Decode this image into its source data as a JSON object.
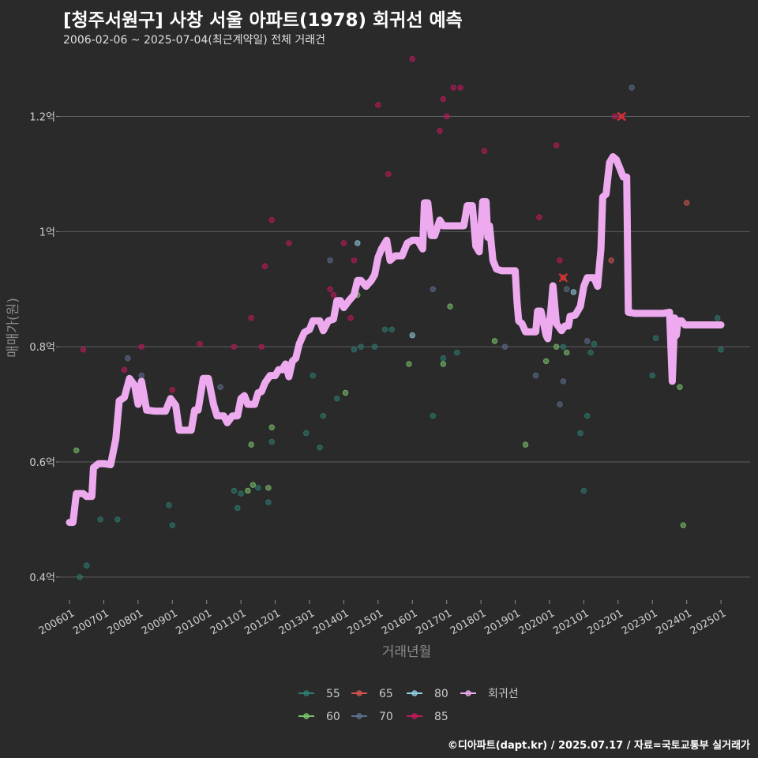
{
  "title": "[청주서원구] 사창 서울 아파트(1978) 회귀선 예측",
  "subtitle": "2006-02-06 ~ 2025-07-04(최근계약일) 전체 거래건",
  "credit": "©디아파트(dapt.kr) / 2025.07.17 / 자료=국토교통부 실거래가",
  "chart_data": {
    "type": "scatter",
    "xlabel": "거래년월",
    "ylabel": "매매가(원)",
    "xlim": [
      2005.7,
      2025.85
    ],
    "ylim": [
      0.36,
      1.32
    ],
    "y_unit": "억",
    "y_ticks": [
      {
        "value": 0.4,
        "label": "0.4억"
      },
      {
        "value": 0.6,
        "label": "0.6억"
      },
      {
        "value": 0.8,
        "label": "0.8억"
      },
      {
        "value": 1.0,
        "label": "1억"
      },
      {
        "value": 1.2,
        "label": "1.2억"
      }
    ],
    "x_ticks": [
      {
        "value": 2006.0,
        "label": "200601"
      },
      {
        "value": 2007.0,
        "label": "200701"
      },
      {
        "value": 2008.0,
        "label": "200801"
      },
      {
        "value": 2009.0,
        "label": "200901"
      },
      {
        "value": 2010.0,
        "label": "201001"
      },
      {
        "value": 2011.0,
        "label": "201101"
      },
      {
        "value": 2012.0,
        "label": "201201"
      },
      {
        "value": 2013.0,
        "label": "201301"
      },
      {
        "value": 2014.0,
        "label": "201401"
      },
      {
        "value": 2015.0,
        "label": "201501"
      },
      {
        "value": 2016.0,
        "label": "201601"
      },
      {
        "value": 2017.0,
        "label": "201701"
      },
      {
        "value": 2018.0,
        "label": "201801"
      },
      {
        "value": 2019.0,
        "label": "201901"
      },
      {
        "value": 2020.0,
        "label": "202001"
      },
      {
        "value": 2021.0,
        "label": "202101"
      },
      {
        "value": 2022.0,
        "label": "202201"
      },
      {
        "value": 2023.0,
        "label": "202301"
      },
      {
        "value": 2024.0,
        "label": "202401"
      },
      {
        "value": 2025.0,
        "label": "202501"
      }
    ],
    "colors": {
      "55": "#2e7d72",
      "60": "#7cc46a",
      "65": "#d2554f",
      "70": "#5e6f8f",
      "80": "#8fcfe0",
      "85": "#c2185b",
      "regression": "#eeaaee",
      "highlight": "#d32f2f"
    },
    "legend": [
      {
        "key": "55",
        "label": "55"
      },
      {
        "key": "65",
        "label": "65"
      },
      {
        "key": "80",
        "label": "80"
      },
      {
        "key": "regression",
        "label": "회귀선"
      },
      {
        "key": "60",
        "label": "60"
      },
      {
        "key": "70",
        "label": "70"
      },
      {
        "key": "85",
        "label": "85"
      }
    ],
    "series": [
      {
        "name": "55",
        "points": [
          [
            2006.3,
            0.4
          ],
          [
            2006.5,
            0.42
          ],
          [
            2006.9,
            0.5
          ],
          [
            2007.4,
            0.5
          ],
          [
            2008.9,
            0.525
          ],
          [
            2009.0,
            0.49
          ],
          [
            2010.8,
            0.55
          ],
          [
            2010.9,
            0.52
          ],
          [
            2011.0,
            0.545
          ],
          [
            2011.5,
            0.555
          ],
          [
            2011.8,
            0.53
          ],
          [
            2011.9,
            0.635
          ],
          [
            2012.9,
            0.65
          ],
          [
            2013.1,
            0.75
          ],
          [
            2013.3,
            0.625
          ],
          [
            2013.4,
            0.68
          ],
          [
            2013.8,
            0.71
          ],
          [
            2014.3,
            0.795
          ],
          [
            2014.5,
            0.8
          ],
          [
            2014.9,
            0.8
          ],
          [
            2015.2,
            0.83
          ],
          [
            2015.4,
            0.83
          ],
          [
            2016.6,
            0.68
          ],
          [
            2016.9,
            0.78
          ],
          [
            2017.3,
            0.79
          ],
          [
            2020.4,
            0.8
          ],
          [
            2020.9,
            0.65
          ],
          [
            2021.0,
            0.55
          ],
          [
            2021.1,
            0.68
          ],
          [
            2021.2,
            0.79
          ],
          [
            2021.3,
            0.805
          ],
          [
            2023.0,
            0.75
          ],
          [
            2023.1,
            0.815
          ],
          [
            2024.9,
            0.85
          ],
          [
            2025.0,
            0.795
          ]
        ]
      },
      {
        "name": "60",
        "points": [
          [
            2006.2,
            0.62
          ],
          [
            2011.2,
            0.55
          ],
          [
            2011.3,
            0.63
          ],
          [
            2011.35,
            0.56
          ],
          [
            2011.8,
            0.555
          ],
          [
            2011.9,
            0.66
          ],
          [
            2014.05,
            0.72
          ],
          [
            2014.4,
            0.89
          ],
          [
            2015.9,
            0.77
          ],
          [
            2016.9,
            0.77
          ],
          [
            2017.1,
            0.87
          ],
          [
            2018.4,
            0.81
          ],
          [
            2019.3,
            0.63
          ],
          [
            2019.9,
            0.775
          ],
          [
            2020.2,
            0.8
          ],
          [
            2020.5,
            0.79
          ],
          [
            2022.3,
            0.92
          ],
          [
            2023.8,
            0.73
          ],
          [
            2023.9,
            0.49
          ]
        ]
      },
      {
        "name": "65",
        "points": [
          [
            2020.4,
            0.92
          ],
          [
            2021.8,
            0.95
          ],
          [
            2024.0,
            1.05
          ]
        ]
      },
      {
        "name": "70",
        "points": [
          [
            2007.7,
            0.78
          ],
          [
            2008.1,
            0.75
          ],
          [
            2010.0,
            0.74
          ],
          [
            2010.4,
            0.73
          ],
          [
            2013.6,
            0.95
          ],
          [
            2016.6,
            0.9
          ],
          [
            2018.7,
            0.8
          ],
          [
            2019.6,
            0.75
          ],
          [
            2020.3,
            0.7
          ],
          [
            2020.4,
            0.74
          ],
          [
            2020.5,
            0.9
          ],
          [
            2021.1,
            0.81
          ],
          [
            2022.4,
            1.25
          ]
        ]
      },
      {
        "name": "80",
        "points": [
          [
            2014.4,
            0.98
          ],
          [
            2016.0,
            0.82
          ],
          [
            2020.7,
            0.895
          ]
        ]
      },
      {
        "name": "85",
        "points": [
          [
            2006.4,
            0.795
          ],
          [
            2007.6,
            0.76
          ],
          [
            2008.1,
            0.8
          ],
          [
            2009.0,
            0.725
          ],
          [
            2009.8,
            0.805
          ],
          [
            2010.8,
            0.8
          ],
          [
            2011.3,
            0.85
          ],
          [
            2011.6,
            0.8
          ],
          [
            2011.7,
            0.94
          ],
          [
            2011.9,
            1.02
          ],
          [
            2012.4,
            0.98
          ],
          [
            2013.0,
            0.83
          ],
          [
            2013.4,
            0.84
          ],
          [
            2013.6,
            0.9
          ],
          [
            2013.7,
            0.89
          ],
          [
            2014.0,
            0.98
          ],
          [
            2014.2,
            0.85
          ],
          [
            2014.3,
            0.95
          ],
          [
            2015.0,
            1.22
          ],
          [
            2015.3,
            1.1
          ],
          [
            2016.0,
            1.3
          ],
          [
            2016.8,
            1.175
          ],
          [
            2016.9,
            1.23
          ],
          [
            2017.0,
            1.2
          ],
          [
            2017.2,
            1.25
          ],
          [
            2017.4,
            1.25
          ],
          [
            2018.1,
            1.14
          ],
          [
            2019.7,
            1.025
          ],
          [
            2020.2,
            1.15
          ],
          [
            2020.3,
            0.95
          ],
          [
            2021.9,
            1.2
          ],
          [
            2022.1,
            1.2
          ]
        ]
      }
    ],
    "highlights": [
      {
        "marker": "x",
        "x": 2022.1,
        "y": 1.2
      },
      {
        "marker": "x",
        "x": 2020.4,
        "y": 0.92
      }
    ],
    "regression": [
      [
        2006.0,
        0.495
      ],
      [
        2006.1,
        0.495
      ],
      [
        2006.2,
        0.545
      ],
      [
        2006.4,
        0.545
      ],
      [
        2006.5,
        0.54
      ],
      [
        2006.65,
        0.54
      ],
      [
        2006.7,
        0.59
      ],
      [
        2006.85,
        0.597
      ],
      [
        2007.0,
        0.597
      ],
      [
        2007.2,
        0.595
      ],
      [
        2007.35,
        0.64
      ],
      [
        2007.45,
        0.706
      ],
      [
        2007.6,
        0.712
      ],
      [
        2007.75,
        0.745
      ],
      [
        2007.9,
        0.733
      ],
      [
        2008.0,
        0.7
      ],
      [
        2008.1,
        0.74
      ],
      [
        2008.25,
        0.69
      ],
      [
        2008.5,
        0.688
      ],
      [
        2008.8,
        0.688
      ],
      [
        2008.95,
        0.71
      ],
      [
        2009.1,
        0.698
      ],
      [
        2009.2,
        0.655
      ],
      [
        2009.4,
        0.655
      ],
      [
        2009.55,
        0.655
      ],
      [
        2009.65,
        0.69
      ],
      [
        2009.75,
        0.69
      ],
      [
        2009.9,
        0.745
      ],
      [
        2010.05,
        0.745
      ],
      [
        2010.2,
        0.7
      ],
      [
        2010.3,
        0.68
      ],
      [
        2010.5,
        0.68
      ],
      [
        2010.6,
        0.668
      ],
      [
        2010.75,
        0.68
      ],
      [
        2010.9,
        0.68
      ],
      [
        2011.0,
        0.71
      ],
      [
        2011.1,
        0.715
      ],
      [
        2011.2,
        0.7
      ],
      [
        2011.4,
        0.7
      ],
      [
        2011.5,
        0.72
      ],
      [
        2011.6,
        0.722
      ],
      [
        2011.7,
        0.737
      ],
      [
        2011.85,
        0.75
      ],
      [
        2012.0,
        0.75
      ],
      [
        2012.1,
        0.76
      ],
      [
        2012.2,
        0.76
      ],
      [
        2012.3,
        0.77
      ],
      [
        2012.4,
        0.748
      ],
      [
        2012.5,
        0.775
      ],
      [
        2012.6,
        0.78
      ],
      [
        2012.7,
        0.805
      ],
      [
        2012.85,
        0.825
      ],
      [
        2013.0,
        0.83
      ],
      [
        2013.1,
        0.845
      ],
      [
        2013.3,
        0.845
      ],
      [
        2013.4,
        0.828
      ],
      [
        2013.55,
        0.845
      ],
      [
        2013.7,
        0.848
      ],
      [
        2013.8,
        0.88
      ],
      [
        2013.9,
        0.88
      ],
      [
        2014.0,
        0.868
      ],
      [
        2014.15,
        0.88
      ],
      [
        2014.3,
        0.89
      ],
      [
        2014.4,
        0.915
      ],
      [
        2014.5,
        0.915
      ],
      [
        2014.65,
        0.905
      ],
      [
        2014.8,
        0.915
      ],
      [
        2014.9,
        0.925
      ],
      [
        2015.0,
        0.955
      ],
      [
        2015.1,
        0.97
      ],
      [
        2015.25,
        0.985
      ],
      [
        2015.35,
        0.95
      ],
      [
        2015.5,
        0.958
      ],
      [
        2015.7,
        0.958
      ],
      [
        2015.85,
        0.98
      ],
      [
        2016.0,
        0.985
      ],
      [
        2016.15,
        0.985
      ],
      [
        2016.3,
        0.97
      ],
      [
        2016.35,
        1.05
      ],
      [
        2016.45,
        1.05
      ],
      [
        2016.55,
        0.993
      ],
      [
        2016.65,
        0.993
      ],
      [
        2016.8,
        1.02
      ],
      [
        2016.9,
        1.01
      ],
      [
        2017.2,
        1.01
      ],
      [
        2017.5,
        1.01
      ],
      [
        2017.6,
        1.045
      ],
      [
        2017.75,
        1.045
      ],
      [
        2017.85,
        0.975
      ],
      [
        2017.95,
        0.965
      ],
      [
        2018.05,
        1.052
      ],
      [
        2018.15,
        1.052
      ],
      [
        2018.2,
        0.99
      ],
      [
        2018.25,
        1.01
      ],
      [
        2018.35,
        0.95
      ],
      [
        2018.45,
        0.935
      ],
      [
        2018.6,
        0.932
      ],
      [
        2018.8,
        0.932
      ],
      [
        2019.0,
        0.932
      ],
      [
        2019.05,
        0.88
      ],
      [
        2019.1,
        0.845
      ],
      [
        2019.2,
        0.84
      ],
      [
        2019.3,
        0.826
      ],
      [
        2019.45,
        0.826
      ],
      [
        2019.6,
        0.826
      ],
      [
        2019.65,
        0.862
      ],
      [
        2019.75,
        0.862
      ],
      [
        2019.9,
        0.82
      ],
      [
        2019.95,
        0.814
      ],
      [
        2020.05,
        0.87
      ],
      [
        2020.1,
        0.906
      ],
      [
        2020.2,
        0.84
      ],
      [
        2020.35,
        0.828
      ],
      [
        2020.45,
        0.836
      ],
      [
        2020.55,
        0.836
      ],
      [
        2020.6,
        0.853
      ],
      [
        2020.75,
        0.855
      ],
      [
        2020.9,
        0.87
      ],
      [
        2021.0,
        0.905
      ],
      [
        2021.1,
        0.92
      ],
      [
        2021.3,
        0.92
      ],
      [
        2021.4,
        0.905
      ],
      [
        2021.5,
        0.97
      ],
      [
        2021.55,
        1.06
      ],
      [
        2021.65,
        1.065
      ],
      [
        2021.75,
        1.12
      ],
      [
        2021.85,
        1.13
      ],
      [
        2021.95,
        1.125
      ],
      [
        2022.05,
        1.11
      ],
      [
        2022.15,
        1.095
      ],
      [
        2022.25,
        1.095
      ],
      [
        2022.3,
        0.86
      ],
      [
        2022.5,
        0.858
      ],
      [
        2022.7,
        0.858
      ],
      [
        2022.9,
        0.858
      ],
      [
        2023.1,
        0.858
      ],
      [
        2023.3,
        0.858
      ],
      [
        2023.5,
        0.86
      ],
      [
        2023.58,
        0.74
      ],
      [
        2023.65,
        0.85
      ],
      [
        2023.7,
        0.82
      ],
      [
        2023.75,
        0.845
      ],
      [
        2023.85,
        0.845
      ],
      [
        2023.95,
        0.838
      ],
      [
        2024.2,
        0.838
      ],
      [
        2024.6,
        0.838
      ],
      [
        2025.0,
        0.838
      ]
    ]
  }
}
